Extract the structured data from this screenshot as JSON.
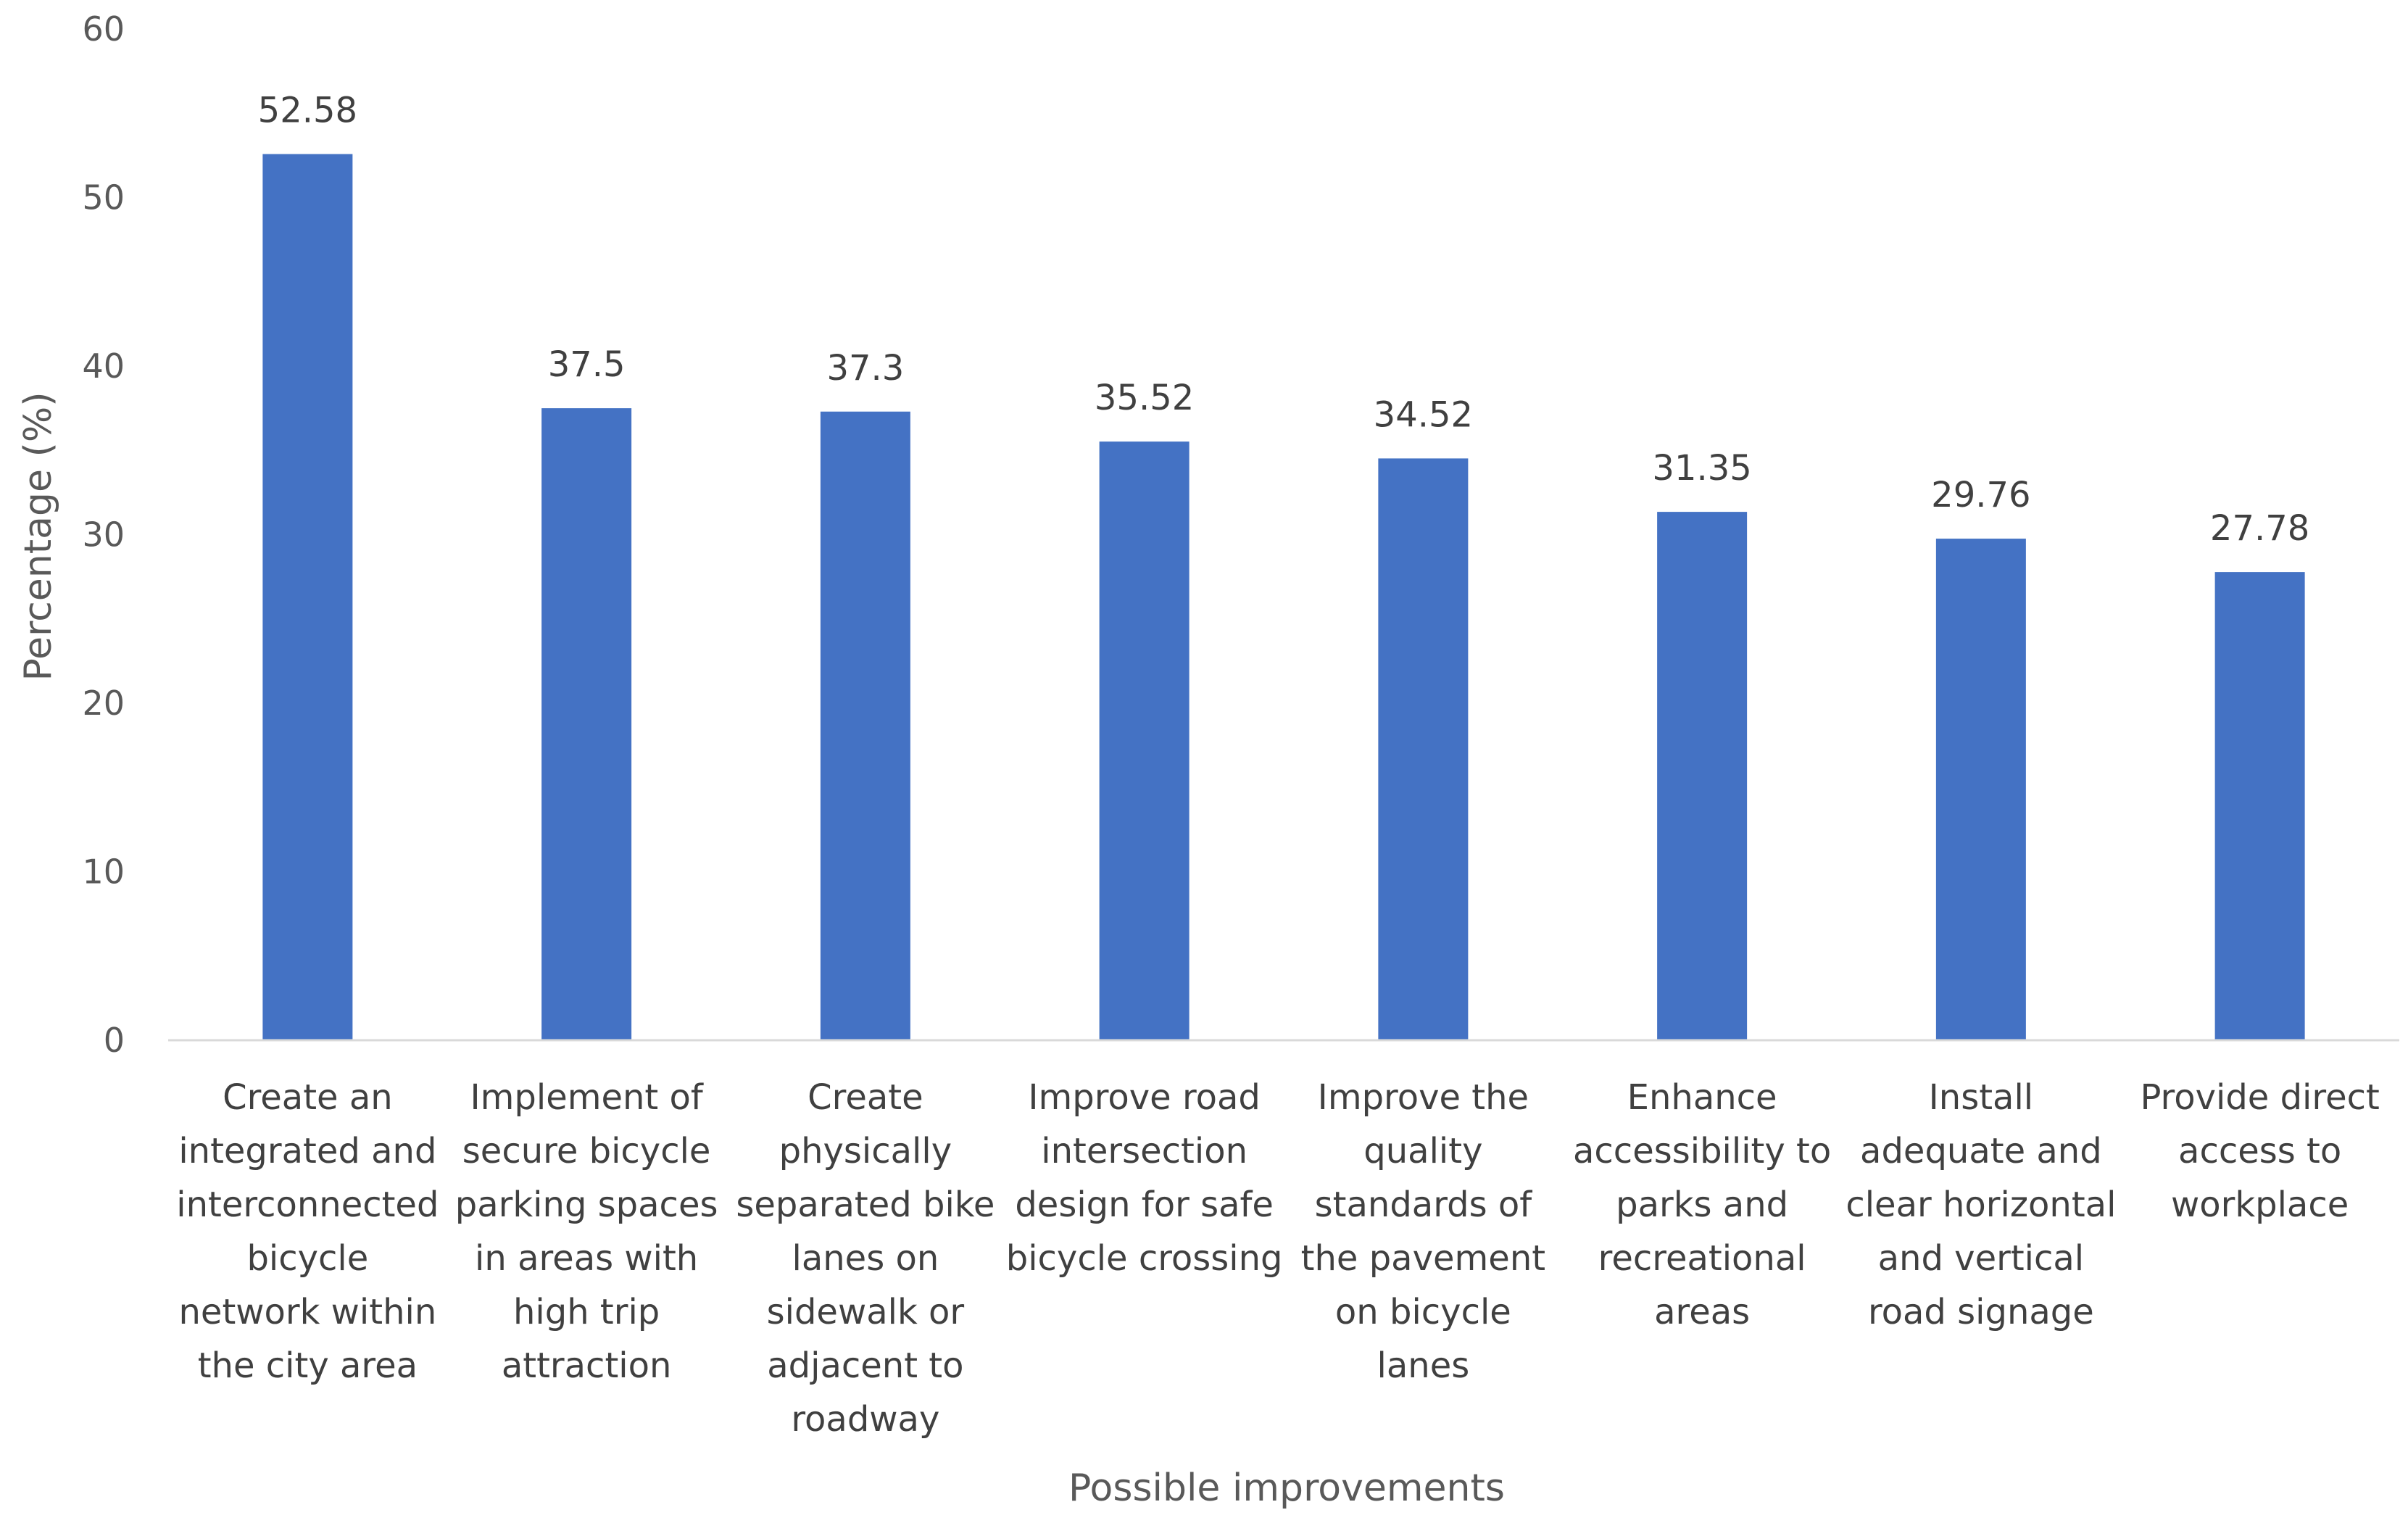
{
  "chart_data": {
    "type": "bar",
    "title": "",
    "xlabel": "Possible improvements",
    "ylabel": "Percentage (%)",
    "ylim": [
      0,
      60
    ],
    "yticks": [
      0,
      10,
      20,
      30,
      40,
      50,
      60
    ],
    "grid": false,
    "legend": "none",
    "bar_color": "#4472C4",
    "axis_color": "#d9d9d9",
    "categories": [
      [
        "Create an",
        "integrated and",
        "interconnected",
        "bicycle",
        "network within",
        "the city area"
      ],
      [
        "Implement of",
        "secure bicycle",
        "parking spaces",
        "in areas with",
        "high trip",
        "attraction"
      ],
      [
        "Create",
        "physically",
        "separated bike",
        "lanes on",
        "sidewalk or",
        "adjacent to",
        "roadway"
      ],
      [
        "Improve road",
        "intersection",
        "design for safe",
        "bicycle crossing"
      ],
      [
        "Improve the",
        "quality",
        "standards of",
        "the pavement",
        "on bicycle",
        "lanes"
      ],
      [
        "Enhance",
        "accessibility to",
        "parks and",
        "recreational",
        "areas"
      ],
      [
        "Install",
        "adequate and",
        "clear horizontal",
        "and vertical",
        "road signage"
      ],
      [
        "Provide direct",
        "access to",
        "workplace"
      ]
    ],
    "values": [
      52.58,
      37.5,
      37.3,
      35.52,
      34.52,
      31.35,
      29.76,
      27.78
    ],
    "data_labels": [
      "52.58",
      "37.5",
      "37.3",
      "35.52",
      "34.52",
      "31.35",
      "29.76",
      "27.78"
    ]
  }
}
